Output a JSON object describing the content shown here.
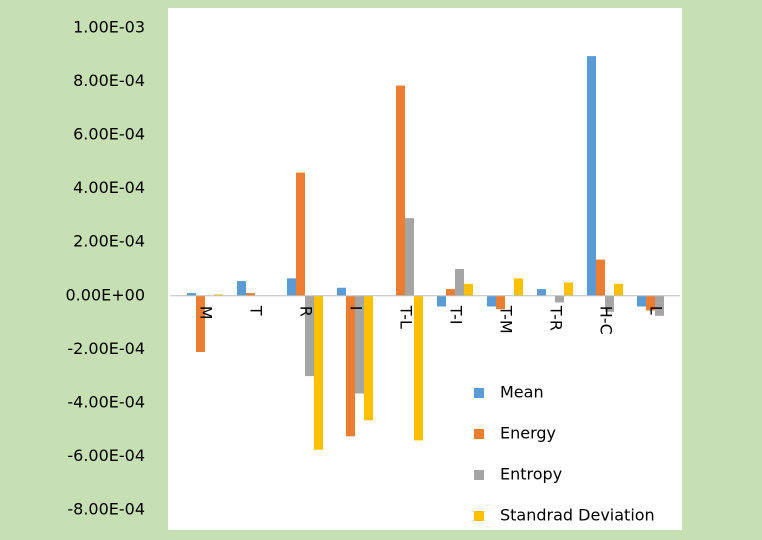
{
  "chart_data": {
    "type": "bar",
    "categories": [
      "M",
      "T",
      "R",
      "I",
      "T-L",
      "T-I",
      "T-M",
      "T-R",
      "H-C",
      "L"
    ],
    "series": [
      {
        "name": "Mean",
        "color": "#5b9bd5",
        "values": [
          1e-05,
          5.5e-05,
          6.5e-05,
          3e-05,
          0,
          -4e-05,
          -4e-05,
          2.5e-05,
          0.000895,
          -4e-05
        ]
      },
      {
        "name": "Energy",
        "color": "#ed7d31",
        "values": [
          -0.00021,
          1e-05,
          0.00046,
          -0.000525,
          0.000785,
          2.5e-05,
          -5e-05,
          0,
          0.000135,
          -5.5e-05
        ]
      },
      {
        "name": "Entropy",
        "color": "#a5a5a5",
        "values": [
          0,
          0,
          -0.0003,
          -0.000365,
          0.00029,
          0.0001,
          0,
          -2.5e-05,
          -6e-05,
          -7.5e-05
        ]
      },
      {
        "name": "Standrad Deviation",
        "color": "#ffc000",
        "values": [
          5e-06,
          0,
          -0.000575,
          -0.000465,
          -0.00054,
          4.5e-05,
          6.5e-05,
          5e-05,
          4.5e-05,
          0
        ]
      }
    ],
    "ylim": [
      -0.0008,
      0.001
    ],
    "yticks": [
      {
        "value": -0.0008,
        "label": "-8.00E-04"
      },
      {
        "value": -0.0006,
        "label": "-6.00E-04"
      },
      {
        "value": -0.0004,
        "label": "-4.00E-04"
      },
      {
        "value": -0.0002,
        "label": "-2.00E-04"
      },
      {
        "value": 0,
        "label": "0.00E+00"
      },
      {
        "value": 0.0002,
        "label": "2.00E-04"
      },
      {
        "value": 0.0004,
        "label": "4.00E-04"
      },
      {
        "value": 0.0006,
        "label": "6.00E-04"
      },
      {
        "value": 0.0008,
        "label": "8.00E-04"
      },
      {
        "value": 0.001,
        "label": "1.00E-03"
      }
    ],
    "grid": false,
    "legend": "lower right"
  }
}
